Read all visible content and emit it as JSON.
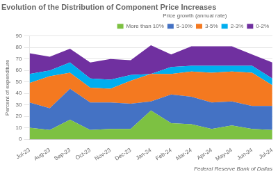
{
  "chart_data": {
    "type": "area",
    "title": "Evolution of the Distribution of Component Price Increases",
    "ylabel": "Percent of expenditure",
    "legend_title": "Price growth (annual rate)",
    "source": "Federal Reserve Bank of Dallas",
    "categories": [
      "Jul-23",
      "Aug-23",
      "Sep-23",
      "Oct-23",
      "Nov-23",
      "Dec-23",
      "Jan-24",
      "Feb-24",
      "Mar-24",
      "Apr-24",
      "May-24",
      "Jun-24",
      "Jul-24"
    ],
    "series": [
      {
        "name": "More than 10%",
        "color": "#7DC142",
        "values": [
          10,
          8,
          17,
          8,
          9,
          9,
          25,
          14,
          13,
          9,
          12,
          9,
          8
        ]
      },
      {
        "name": "5-10%",
        "color": "#4472C4",
        "values": [
          22,
          19,
          27,
          24,
          23,
          22,
          8,
          25,
          24,
          23,
          21,
          20,
          21
        ]
      },
      {
        "name": "3-5%",
        "color": "#F47920",
        "values": [
          17,
          28,
          14,
          13,
          12,
          20,
          24,
          18,
          22,
          26,
          26,
          29,
          18
        ]
      },
      {
        "name": "2-3%",
        "color": "#00AEEF",
        "values": [
          8,
          5,
          9,
          8,
          8,
          5,
          0,
          6,
          5,
          6,
          5,
          6,
          6
        ]
      },
      {
        "name": "0-2%",
        "color": "#7030A0",
        "values": [
          18,
          12,
          12,
          14,
          18,
          13,
          25,
          11,
          17,
          17,
          17,
          10,
          14
        ]
      }
    ],
    "stacked": true,
    "ylim": [
      0,
      90
    ],
    "yticks": [
      0,
      10,
      20,
      30,
      40,
      50,
      60,
      70,
      80,
      90
    ],
    "grid": "y",
    "legend": "top"
  }
}
